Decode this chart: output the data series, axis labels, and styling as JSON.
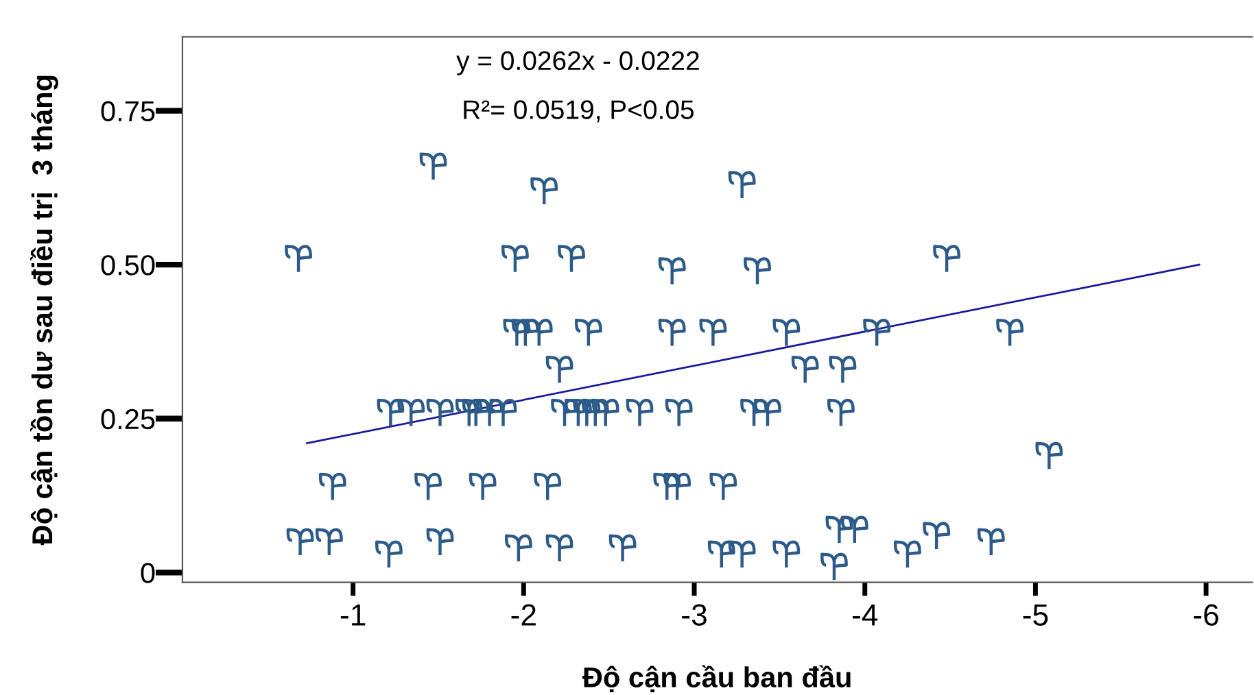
{
  "chart_data": {
    "type": "scatter",
    "xlabel": "Độ cận cầu ban đầu",
    "ylabel": "Độ cận tồn dư sau điều trị  3 tháng",
    "annotations": [
      "y = 0.0262x - 0.0222",
      "R²= 0.0519, P<0.05"
    ],
    "xlim": [
      0,
      -6.27
    ],
    "ylim": [
      -0.016,
      0.87
    ],
    "xticks": [
      -1,
      -2,
      -3,
      -4,
      -5,
      -6
    ],
    "yticks": [
      0,
      {
        "value": 0.25,
        "label": "0.25"
      },
      {
        "value": 0.5,
        "label": "0.50"
      },
      0.75
    ],
    "grid": false,
    "legend": false,
    "series": [
      {
        "color": "#2c5b8a",
        "x": [
          -1.47,
          -2.12,
          -0.68,
          -1.95,
          -2.28,
          -2.87,
          -1.96,
          -2.01,
          -2.09,
          -2.38,
          -2.87,
          -3.11,
          -2.21,
          -1.22,
          -1.34,
          -1.51,
          -1.68,
          -1.72,
          -1.8,
          -1.88,
          -2.24,
          -2.32,
          -2.37,
          -2.42,
          -2.48,
          -2.68,
          -2.91,
          -0.88,
          -1.44,
          -1.76,
          -2.14,
          -2.84,
          -2.9,
          -0.69,
          -0.86,
          -1.21,
          -1.51,
          -1.97,
          -2.21,
          -2.58,
          -3.28,
          -3.37,
          -4.48,
          -3.54,
          -4.07,
          -4.85,
          -3.65,
          -3.87,
          -3.35,
          -3.43,
          -3.86,
          -5.08,
          -3.17,
          -3.16,
          -3.28,
          -3.54,
          -3.82,
          -3.85,
          -3.94,
          -4.25,
          -4.42,
          -4.74
        ],
        "values": [
          0.66,
          0.62,
          0.51,
          0.51,
          0.51,
          0.49,
          0.39,
          0.39,
          0.39,
          0.39,
          0.39,
          0.39,
          0.33,
          0.26,
          0.26,
          0.26,
          0.26,
          0.26,
          0.26,
          0.26,
          0.26,
          0.26,
          0.26,
          0.26,
          0.26,
          0.26,
          0.26,
          0.14,
          0.14,
          0.14,
          0.14,
          0.14,
          0.14,
          0.05,
          0.05,
          0.03,
          0.05,
          0.04,
          0.04,
          0.04,
          0.63,
          0.49,
          0.51,
          0.39,
          0.39,
          0.39,
          0.33,
          0.33,
          0.26,
          0.26,
          0.26,
          0.19,
          0.14,
          0.03,
          0.03,
          0.03,
          0.01,
          0.07,
          0.07,
          0.03,
          0.06,
          0.05
        ]
      },
      {
        "type": "line",
        "color": "#1a1a9a",
        "x": [
          -0.73,
          -5.96
        ],
        "values": [
          0.21,
          0.5
        ]
      }
    ]
  }
}
